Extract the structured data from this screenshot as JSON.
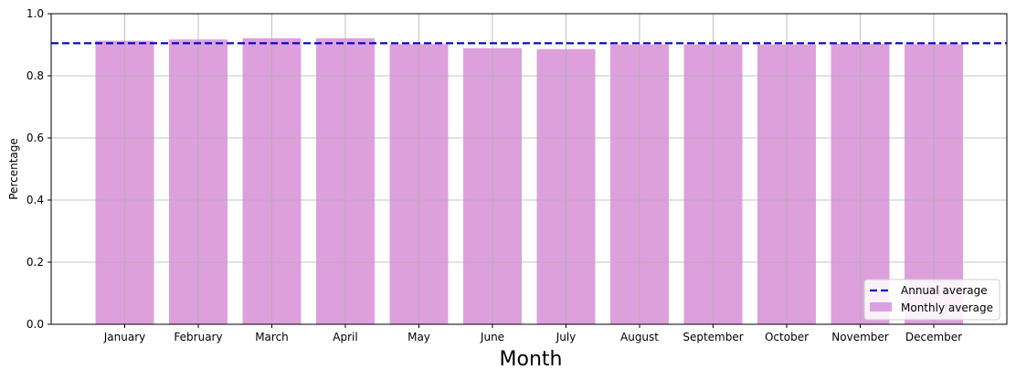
{
  "chart_data": {
    "type": "bar",
    "categories": [
      "January",
      "February",
      "March",
      "April",
      "May",
      "June",
      "July",
      "August",
      "September",
      "October",
      "November",
      "December"
    ],
    "series": [
      {
        "name": "Monthly average",
        "values": [
          0.913,
          0.917,
          0.921,
          0.921,
          0.902,
          0.889,
          0.886,
          0.901,
          0.901,
          0.901,
          0.903,
          0.902
        ]
      }
    ],
    "reference_line": {
      "name": "Annual average",
      "value": 0.905,
      "style": "dashed",
      "color": "#0000cc"
    },
    "xlabel": "Month",
    "ylabel": "Percentage",
    "ylim": [
      0,
      1.0
    ],
    "yticks": [
      "0.0",
      "0.2",
      "0.4",
      "0.6",
      "0.8",
      "1.0"
    ],
    "ytick_values": [
      0,
      0.2,
      0.4,
      0.6,
      0.8,
      1.0
    ],
    "grid": true,
    "legend_position": "bottom-right",
    "colors": {
      "bar": "#dda0dd",
      "grid": "#b0b0b0",
      "axis": "#000000",
      "line": "#0000cc"
    }
  }
}
